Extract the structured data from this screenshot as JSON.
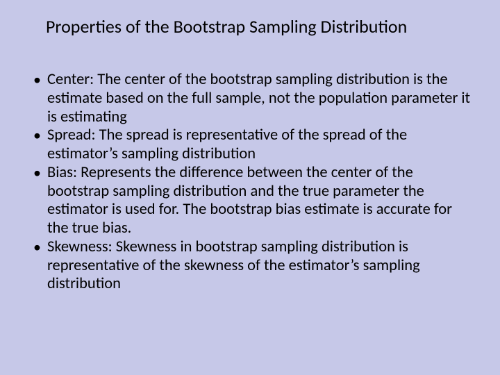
{
  "slide": {
    "title": "Properties of the Bootstrap Sampling Distribution",
    "bullets": [
      "Center: The center of the bootstrap sampling distribution is the estimate based on the full sample, not the population parameter it is estimating",
      "Spread: The spread is representative of the spread of the estimator’s sampling distribution",
      "Bias: Represents the difference between the center of the bootstrap sampling distribution and the true parameter the estimator is used for. The bootstrap bias estimate is accurate for the true bias.",
      "Skewness: Skewness in bootstrap sampling distribution is representative of the skewness of the estimator’s sampling distribution"
    ],
    "background_color": "#c6c8e8",
    "text_color": "#000000",
    "title_fontsize": 26,
    "body_fontsize": 22.5,
    "font_family": "Calibri"
  }
}
